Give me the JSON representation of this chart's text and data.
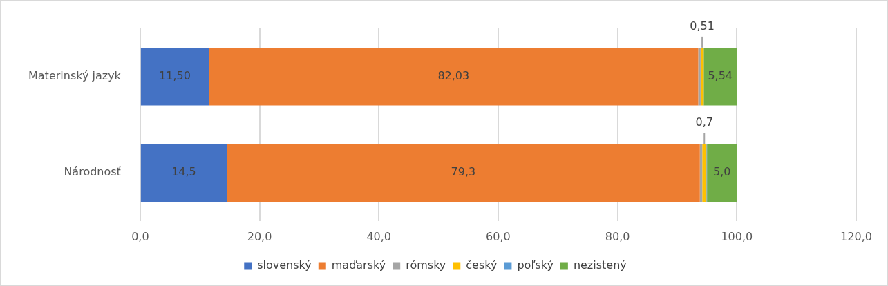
{
  "chart_data": {
    "type": "bar",
    "orientation": "horizontal",
    "stacked": true,
    "categories": [
      "Materinský jazyk",
      "Národnosť"
    ],
    "series": [
      {
        "name": "slovenský",
        "color": "#4472c4",
        "values": [
          11.5,
          14.5
        ],
        "value_labels": [
          "11,50",
          "14,5"
        ]
      },
      {
        "name": "maďarský",
        "color": "#ed7d31",
        "values": [
          82.03,
          79.3
        ],
        "value_labels": [
          "82,03",
          "79,3"
        ]
      },
      {
        "name": "rómsky",
        "color": "#a5a5a5",
        "values": [
          0.4,
          0.4
        ],
        "value_labels": [
          null,
          null
        ]
      },
      {
        "name": "český",
        "color": "#ffc000",
        "values": [
          0.51,
          0.7
        ],
        "value_labels": [
          "0,51",
          "0,7"
        ]
      },
      {
        "name": "poľský",
        "color": "#5b9bd5",
        "values": [
          null,
          0.1
        ],
        "value_labels": [
          null,
          null
        ]
      },
      {
        "name": "nezistený",
        "color": "#70ad47",
        "values": [
          5.54,
          5.0
        ],
        "value_labels": [
          "5,54",
          "5,0"
        ]
      }
    ],
    "xlim": [
      0,
      120
    ],
    "xticks": [
      {
        "value": 0,
        "label": "0,0"
      },
      {
        "value": 20,
        "label": "20,0"
      },
      {
        "value": 40,
        "label": "40,0"
      },
      {
        "value": 60,
        "label": "60,0"
      },
      {
        "value": 80,
        "label": "80,0"
      },
      {
        "value": 100,
        "label": "100,0"
      },
      {
        "value": 120,
        "label": "120,0"
      }
    ],
    "grid": "x",
    "legend": "bottom"
  }
}
